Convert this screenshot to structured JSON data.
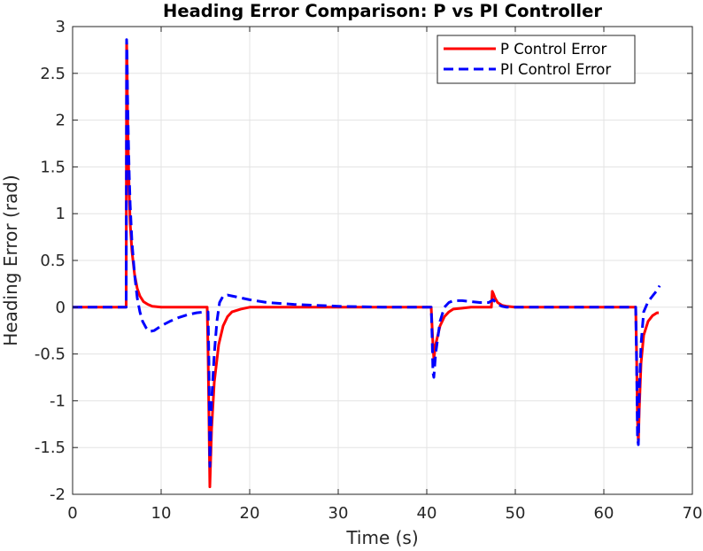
{
  "chart_data": {
    "type": "line",
    "title": "Heading Error Comparison: P vs PI Controller",
    "xlabel": "Time (s)",
    "ylabel": "Heading Error (rad)",
    "xlim": [
      0,
      70
    ],
    "ylim": [
      -2,
      3
    ],
    "xticks": [
      0,
      10,
      20,
      30,
      40,
      50,
      60,
      70
    ],
    "yticks": [
      -2,
      -1.5,
      -1,
      -0.5,
      0,
      0.5,
      1,
      1.5,
      2,
      2.5,
      3
    ],
    "xtick_labels": [
      "0",
      "10",
      "20",
      "30",
      "40",
      "50",
      "60",
      "70"
    ],
    "ytick_labels": [
      "-2",
      "-1.5",
      "-1",
      "-0.5",
      "0",
      "0.5",
      "1",
      "1.5",
      "2",
      "2.5",
      "3"
    ],
    "grid": true,
    "legend_position": "top-right",
    "series": [
      {
        "name": "P Control Error",
        "color": "#ff0000",
        "style": "solid",
        "x": [
          0,
          6.05,
          6.1,
          6.15,
          6.2,
          6.3,
          6.4,
          6.5,
          6.7,
          7.0,
          7.3,
          7.6,
          8.0,
          8.5,
          9.0,
          10.0,
          12.0,
          15.2,
          15.3,
          15.4,
          15.5,
          15.7,
          16.0,
          16.5,
          17.0,
          17.5,
          18.0,
          19.0,
          20.0,
          25.0,
          35.0,
          40.5,
          40.6,
          40.7,
          40.8,
          41.0,
          41.5,
          42.0,
          42.5,
          43.0,
          44.0,
          45.0,
          47.0,
          47.3,
          47.4,
          47.5,
          47.7,
          48.0,
          48.5,
          49.0,
          50.0,
          55.0,
          63.6,
          63.7,
          63.8,
          63.9,
          64.0,
          64.2,
          64.5,
          65.0,
          65.5,
          66.0,
          66.2
        ],
        "y": [
          0,
          0,
          2.85,
          2.6,
          2.1,
          1.6,
          1.2,
          0.9,
          0.6,
          0.35,
          0.2,
          0.12,
          0.06,
          0.03,
          0.01,
          0,
          0,
          0,
          -0.5,
          -1.2,
          -1.92,
          -1.3,
          -0.8,
          -0.4,
          -0.2,
          -0.1,
          -0.05,
          -0.02,
          0,
          0,
          0,
          0,
          -0.2,
          -0.4,
          -0.55,
          -0.4,
          -0.2,
          -0.1,
          -0.05,
          -0.02,
          -0.01,
          0,
          0,
          0,
          0.17,
          0.15,
          0.1,
          0.05,
          0.02,
          0.01,
          0,
          0,
          0,
          -0.5,
          -1.2,
          -1.45,
          -1.1,
          -0.6,
          -0.3,
          -0.15,
          -0.09,
          -0.06,
          -0.06
        ]
      },
      {
        "name": "PI Control Error",
        "color": "#0000ff",
        "style": "dashed",
        "x": [
          0,
          6.05,
          6.1,
          6.15,
          6.2,
          6.3,
          6.4,
          6.5,
          6.7,
          7.0,
          7.3,
          7.6,
          7.9,
          8.3,
          8.7,
          9.2,
          10.0,
          11.0,
          12.0,
          13.0,
          14.0,
          15.0,
          15.3,
          15.4,
          15.5,
          15.7,
          16.0,
          16.3,
          16.6,
          17.0,
          17.5,
          18.0,
          19.0,
          20.0,
          22.0,
          25.0,
          30.0,
          35.0,
          40.5,
          40.6,
          40.7,
          40.8,
          41.0,
          41.5,
          42.0,
          42.5,
          43.0,
          44.0,
          45.0,
          46.0,
          47.0,
          47.5,
          48.0,
          48.5,
          49.0,
          50.0,
          55.0,
          63.6,
          63.7,
          63.8,
          63.9,
          64.0,
          64.2,
          64.5,
          65.0,
          65.5,
          66.0,
          66.3
        ],
        "y": [
          0,
          0,
          2.86,
          2.7,
          2.3,
          1.8,
          1.4,
          1.1,
          0.7,
          0.35,
          0.1,
          -0.05,
          -0.15,
          -0.22,
          -0.26,
          -0.25,
          -0.2,
          -0.15,
          -0.11,
          -0.08,
          -0.06,
          -0.05,
          -0.05,
          -0.6,
          -1.7,
          -1.0,
          -0.5,
          -0.15,
          0.05,
          0.12,
          0.13,
          0.12,
          0.1,
          0.08,
          0.05,
          0.03,
          0.01,
          0,
          0,
          -0.3,
          -0.7,
          -0.75,
          -0.5,
          -0.15,
          0,
          0.05,
          0.07,
          0.07,
          0.06,
          0.05,
          0.05,
          0.08,
          0.03,
          0.01,
          0,
          0,
          0,
          0,
          -0.6,
          -1.4,
          -1.47,
          -0.9,
          -0.4,
          -0.05,
          0.06,
          0.12,
          0.18,
          0.23
        ]
      }
    ]
  }
}
